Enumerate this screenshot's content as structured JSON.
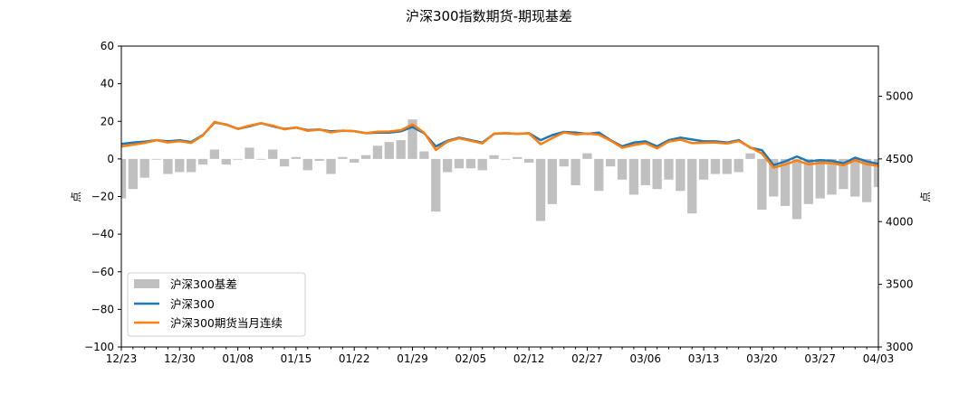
{
  "chart_data": {
    "type": "bar+line",
    "title": "沪深300指数期货-期现基差",
    "xlabel": "",
    "ylabel_left": "点",
    "ylabel_right": "点",
    "ylim_left": [
      -100,
      60
    ],
    "ylim_right": [
      3000,
      5400
    ],
    "yticks_left": [
      60,
      40,
      20,
      0,
      -20,
      -40,
      -60,
      -80,
      -100
    ],
    "yticks_right": [
      5000,
      4500,
      4000,
      3500,
      3000
    ],
    "xtick_labels": [
      "12/23",
      "12/30",
      "01/08",
      "01/15",
      "01/22",
      "01/29",
      "02/05",
      "02/12",
      "02/27",
      "03/06",
      "03/13",
      "03/20",
      "03/27",
      "04/03"
    ],
    "grid": false,
    "legend_position": "lower left",
    "colors": {
      "basis": "#c0c0c0",
      "index": "#1f77b4",
      "futures": "#ff7f0e"
    },
    "legend": [
      "沪深300基差",
      "沪深300",
      "沪深300期货当月连续"
    ],
    "series": [
      {
        "name": "沪深300基差",
        "type": "bar",
        "axis": "left",
        "values": [
          -21,
          -16,
          -10,
          0,
          -8,
          -7,
          -7,
          -3,
          5,
          -3,
          0,
          6,
          0,
          5,
          -4,
          1,
          -6,
          -1,
          -8,
          1,
          -2,
          2,
          7,
          9,
          10,
          21,
          4,
          -28,
          -7,
          -5,
          -5,
          -6,
          2,
          0,
          1,
          -2,
          -33,
          -24,
          -4,
          -14,
          3,
          -17,
          -4,
          -11,
          -19,
          -14,
          -16,
          -11,
          -17,
          -29,
          -11,
          -8,
          -8,
          -7,
          3,
          -27,
          -20,
          -25,
          -32,
          -24,
          -21,
          -19,
          -16,
          -20,
          -23,
          -15
        ]
      },
      {
        "name": "沪深300",
        "type": "line",
        "axis": "right",
        "values": [
          4620,
          4630,
          4638,
          4650,
          4640,
          4648,
          4635,
          4690,
          4790,
          4775,
          4740,
          4760,
          4785,
          4760,
          4740,
          4750,
          4730,
          4735,
          4720,
          4725,
          4722,
          4705,
          4710,
          4710,
          4720,
          4755,
          4705,
          4600,
          4645,
          4670,
          4650,
          4630,
          4700,
          4705,
          4700,
          4705,
          4650,
          4690,
          4715,
          4710,
          4700,
          4710,
          4650,
          4600,
          4630,
          4640,
          4600,
          4650,
          4670,
          4655,
          4640,
          4640,
          4630,
          4650,
          4590,
          4570,
          4450,
          4480,
          4520,
          4480,
          4490,
          4485,
          4465,
          4510,
          4480,
          4460
        ]
      },
      {
        "name": "沪深300期货当月连续",
        "type": "line",
        "axis": "right",
        "values": [
          4599,
          4614,
          4628,
          4650,
          4632,
          4641,
          4628,
          4687,
          4795,
          4772,
          4740,
          4766,
          4785,
          4765,
          4736,
          4751,
          4724,
          4734,
          4712,
          4726,
          4720,
          4707,
          4717,
          4719,
          4730,
          4776,
          4709,
          4572,
          4638,
          4665,
          4645,
          4624,
          4702,
          4705,
          4701,
          4703,
          4617,
          4666,
          4711,
          4696,
          4703,
          4693,
          4646,
          4589,
          4611,
          4626,
          4584,
          4639,
          4653,
          4626,
          4629,
          4632,
          4622,
          4643,
          4593,
          4543,
          4430,
          4455,
          4488,
          4456,
          4469,
          4466,
          4449,
          4490,
          4457,
          4445
        ]
      }
    ]
  }
}
